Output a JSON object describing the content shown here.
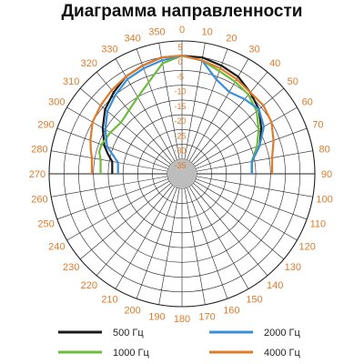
{
  "chart_data": {
    "type": "polar",
    "title": "Диаграмма направленности",
    "angle_ticks": [
      "0",
      "10",
      "20",
      "30",
      "40",
      "50",
      "60",
      "70",
      "80",
      "90",
      "100",
      "110",
      "120",
      "130",
      "140",
      "150",
      "160",
      "170",
      "180",
      "190",
      "200",
      "210",
      "220",
      "230",
      "240",
      "250",
      "260",
      "270",
      "280",
      "290",
      "300",
      "310",
      "320",
      "330",
      "340",
      "350"
    ],
    "radial_ticks": [
      "5",
      "0",
      "-5",
      "-10",
      "-15",
      "-20",
      "-25",
      "-30",
      "-35"
    ],
    "r_range": [
      -40,
      5
    ],
    "grid": true,
    "colors": {
      "500 Гц": "#1a1a1a",
      "1000 Гц": "#6cbd3a",
      "2000 Гц": "#3a8fd9",
      "4000 Гц": "#e07b2a",
      "labels": "#e07b2a",
      "grid": "#222222",
      "center": "#bdbdbd"
    },
    "legend": [
      {
        "label": "500 Гц",
        "color": "#1a1a1a"
      },
      {
        "label": "2000 Гц",
        "color": "#3a8fd9"
      },
      {
        "label": "1000 Гц",
        "color": "#6cbd3a"
      },
      {
        "label": "4000 Гц",
        "color": "#e07b2a"
      }
    ],
    "legend_position": "bottom",
    "series": [
      {
        "name": "500 Гц",
        "angles": [
          -80,
          -75,
          -70,
          -60,
          -50,
          -40,
          -30,
          -20,
          -10,
          0,
          10,
          20,
          30,
          40,
          50,
          60,
          70,
          80
        ],
        "values": [
          -16,
          -14,
          -12,
          -9,
          -6,
          -4,
          -2,
          -1,
          0,
          0,
          0,
          -1,
          -2,
          -4,
          -6,
          -9,
          -12,
          -16
        ]
      },
      {
        "name": "1000 Гц",
        "angles": [
          -80,
          -75,
          -70,
          -60,
          -50,
          -40,
          -30,
          -20,
          -10,
          0,
          10,
          20,
          30,
          40,
          50,
          60,
          70,
          80
        ],
        "values": [
          -12,
          -11,
          -11,
          -12,
          -13,
          -12,
          -10,
          -7,
          -2,
          0,
          -1,
          -3,
          -4,
          -5,
          -7,
          -10,
          -13,
          -16
        ]
      },
      {
        "name": "2000 Гц",
        "angles": [
          -80,
          -70,
          -60,
          -50,
          -40,
          -30,
          -20,
          -10,
          0,
          10,
          20,
          30,
          40,
          50,
          60,
          70,
          80
        ],
        "values": [
          -18,
          -13,
          -10,
          -7,
          -5,
          -3,
          -2,
          -1,
          0,
          -1,
          -6,
          -8,
          -7,
          -6,
          -8,
          -12,
          -16
        ]
      },
      {
        "name": "4000 Гц",
        "angles": [
          -80,
          -75,
          -70,
          -60,
          -50,
          -40,
          -30,
          -20,
          -10,
          0,
          10,
          20,
          30,
          40,
          50,
          60,
          70,
          80
        ],
        "values": [
          -9,
          -8,
          -7,
          -5,
          -4,
          -3,
          -2,
          -1,
          0,
          0,
          -1,
          -2,
          -3,
          -4,
          -4,
          -5,
          -7,
          -9
        ]
      }
    ]
  }
}
